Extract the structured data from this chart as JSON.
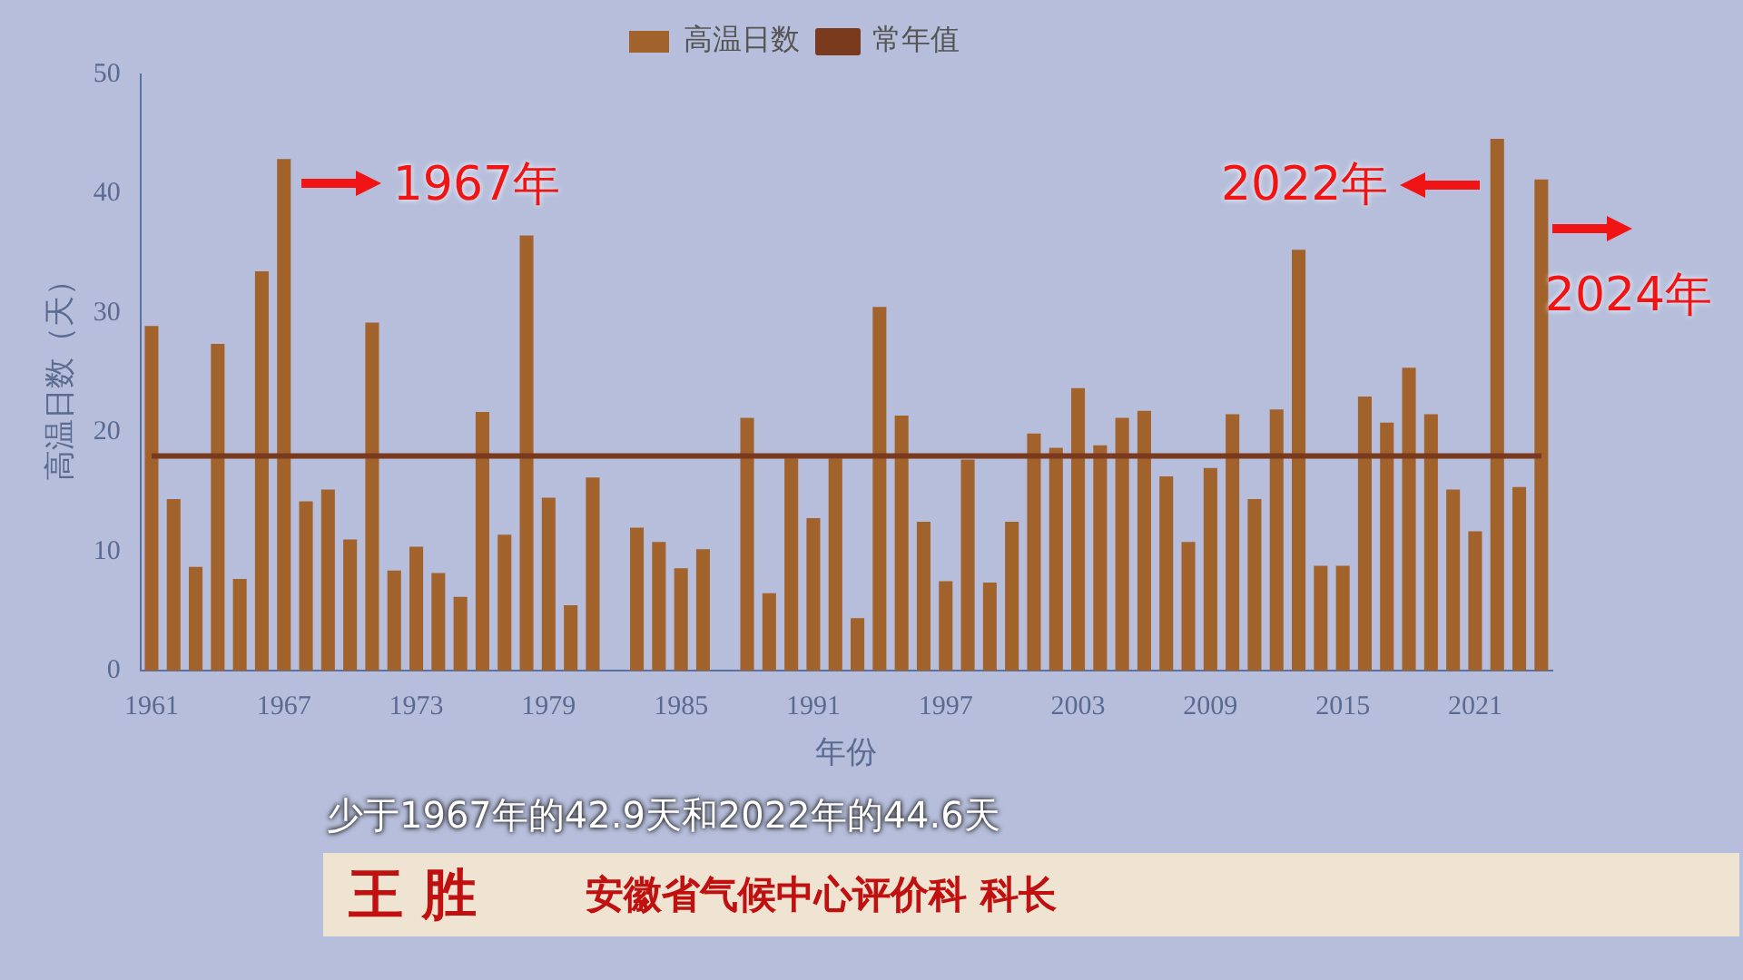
{
  "chart_data": {
    "type": "bar",
    "ylabel": "高温日数（天）",
    "xlabel": "年份",
    "categories": [
      "1961",
      null,
      null,
      null,
      null,
      null,
      "1967",
      null,
      null,
      null,
      null,
      null,
      "1973",
      null,
      null,
      null,
      null,
      null,
      "1979",
      null,
      null,
      null,
      null,
      null,
      "1985",
      null,
      null,
      null,
      null,
      null,
      "1991",
      null,
      null,
      null,
      null,
      null,
      "1997",
      null,
      null,
      null,
      null,
      null,
      "2003",
      null,
      null,
      null,
      null,
      null,
      "2009",
      null,
      null,
      null,
      null,
      null,
      "2015",
      null,
      null,
      null,
      null,
      null,
      "2021",
      null,
      null,
      null
    ],
    "series": [
      {
        "name": "高温日数",
        "color": "#a2622c",
        "values": [
          28.9,
          14.4,
          8.7,
          27.4,
          7.7,
          33.5,
          42.9,
          14.2,
          15.2,
          11.0,
          29.2,
          8.4,
          10.4,
          8.2,
          6.2,
          21.7,
          11.4,
          36.5,
          14.5,
          5.5,
          16.2,
          null,
          12.0,
          10.8,
          8.6,
          10.2,
          null,
          21.2,
          6.5,
          17.8,
          12.8,
          17.8,
          4.4,
          30.5,
          21.4,
          12.5,
          7.5,
          17.7,
          7.4,
          12.5,
          19.9,
          18.7,
          23.7,
          18.9,
          21.2,
          21.8,
          16.3,
          10.8,
          17.0,
          21.5,
          14.4,
          21.9,
          35.3,
          8.8,
          8.8,
          23.0,
          20.8,
          25.4,
          21.5,
          15.2,
          11.7,
          44.6,
          15.4,
          41.2
        ]
      },
      {
        "name": "常年值",
        "type": "line",
        "color": "#7a3a1e",
        "values": [
          18,
          18,
          18,
          18,
          18,
          18,
          18,
          18,
          18,
          18,
          18,
          18,
          18,
          18,
          18,
          18,
          18,
          18,
          18,
          18,
          18,
          18,
          18,
          18,
          18,
          18,
          18,
          18,
          18,
          18,
          18,
          18,
          18,
          18,
          18,
          18,
          18,
          18,
          18,
          18,
          18,
          18,
          18,
          18,
          18,
          18,
          18,
          18,
          18,
          18,
          18,
          18,
          18,
          18,
          18,
          18,
          18,
          18,
          18,
          18,
          18,
          18,
          18,
          18
        ]
      }
    ],
    "ylim": [
      0,
      50
    ],
    "yticks": [
      0,
      10,
      20,
      30,
      40,
      50
    ],
    "grid": false,
    "legend": "top",
    "annotations": [
      {
        "text": "1967年",
        "x": "1967",
        "y": 42.9
      },
      "2022年",
      "2024年",
      "少于1967年的42.9天和2022年的44.6天",
      "王 胜",
      "安徽省气候中心评价科 科长"
    ]
  }
}
